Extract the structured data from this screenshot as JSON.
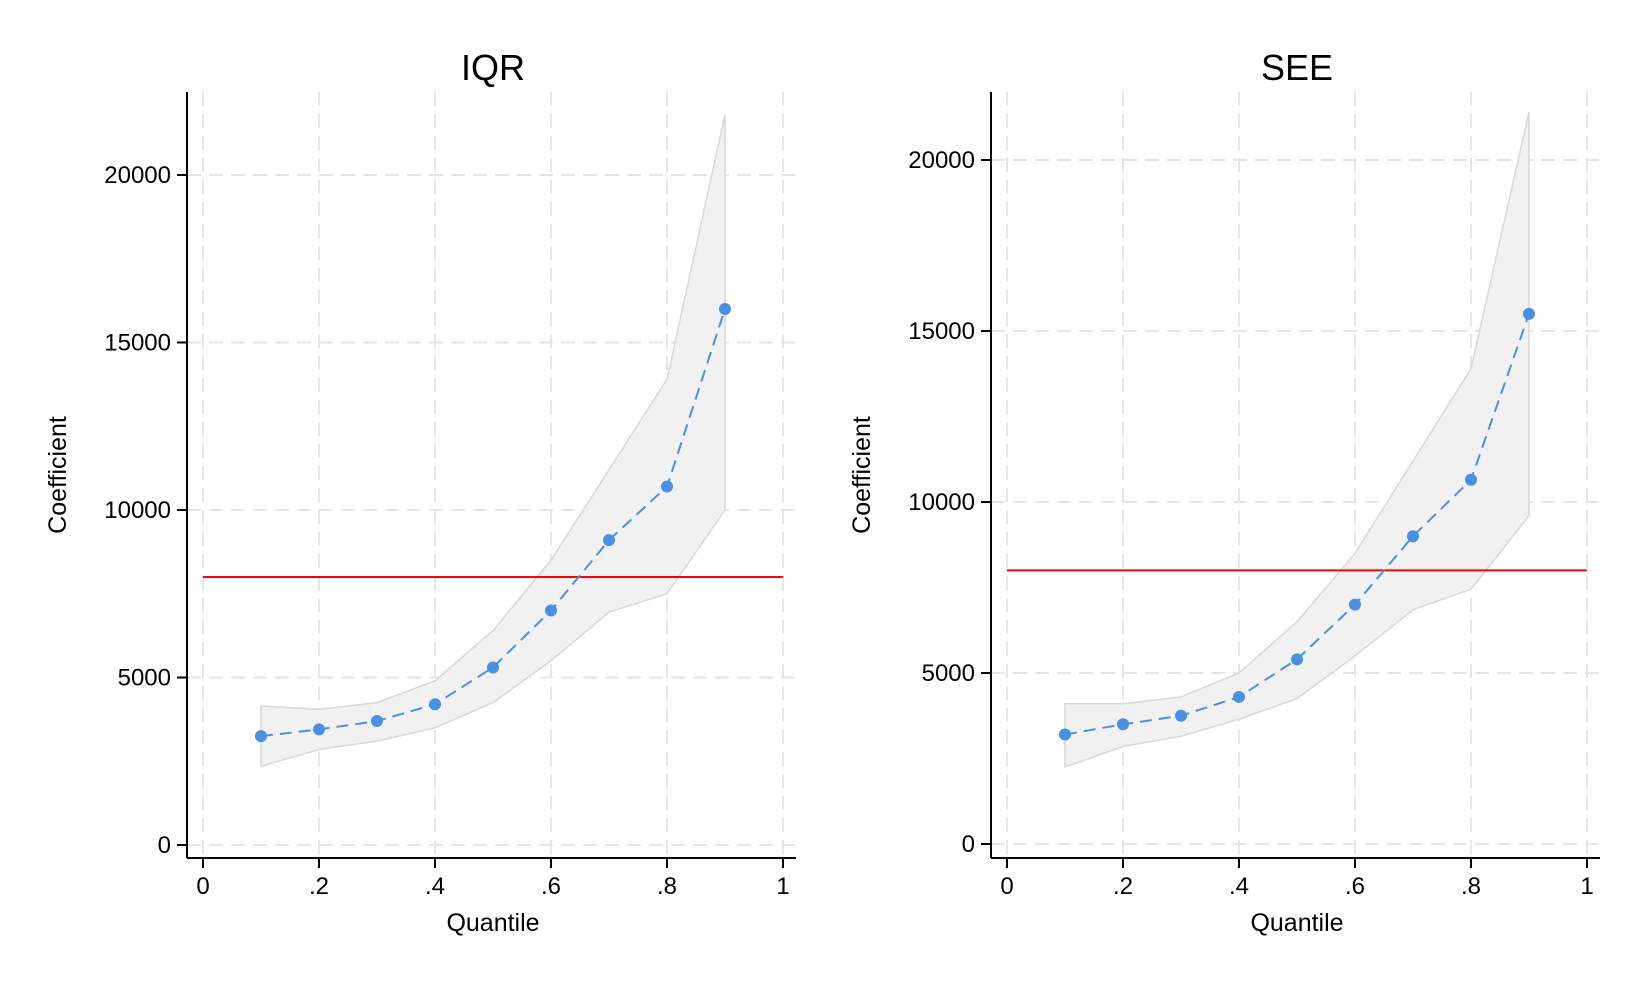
{
  "chart_data": [
    {
      "type": "line",
      "title": "IQR",
      "xlabel": "Quantile",
      "ylabel": "Coefficient",
      "xlim": [
        0,
        1
      ],
      "ylim": [
        0,
        21000
      ],
      "xticks": [
        {
          "value": 0,
          "label": "0"
        },
        {
          "value": 0.2,
          "label": ".2"
        },
        {
          "value": 0.4,
          "label": ".4"
        },
        {
          "value": 0.6,
          "label": ".6"
        },
        {
          "value": 0.8,
          "label": ".8"
        },
        {
          "value": 1,
          "label": "1"
        }
      ],
      "yticks": [
        {
          "value": 0,
          "label": "0"
        },
        {
          "value": 5000,
          "label": "5000"
        },
        {
          "value": 10000,
          "label": "10000"
        },
        {
          "value": 15000,
          "label": "15000"
        },
        {
          "value": 20000,
          "label": "20000"
        }
      ],
      "grid": true,
      "x": [
        0.1,
        0.2,
        0.3,
        0.4,
        0.5,
        0.6,
        0.7,
        0.8,
        0.9
      ],
      "series": [
        {
          "values": [
            3250,
            3450,
            3700,
            4200,
            5300,
            7000,
            9100,
            10700,
            16000
          ]
        }
      ],
      "ci_lower": [
        2350,
        2850,
        3100,
        3500,
        4250,
        5500,
        6950,
        7500,
        10000
      ],
      "ci_upper": [
        4150,
        4050,
        4250,
        4900,
        6400,
        8500,
        11200,
        13900,
        21800
      ],
      "reference_line": 8000
    },
    {
      "type": "line",
      "title": "SEE",
      "xlabel": "Quantile",
      "ylabel": "Coefficient",
      "xlim": [
        0,
        1
      ],
      "ylim": [
        0,
        21000
      ],
      "xticks": [
        {
          "value": 0,
          "label": "0"
        },
        {
          "value": 0.2,
          "label": ".2"
        },
        {
          "value": 0.4,
          "label": ".4"
        },
        {
          "value": 0.6,
          "label": ".6"
        },
        {
          "value": 0.8,
          "label": ".8"
        },
        {
          "value": 1,
          "label": "1"
        }
      ],
      "yticks": [
        {
          "value": 0,
          "label": "0"
        },
        {
          "value": 5000,
          "label": "5000"
        },
        {
          "value": 10000,
          "label": "10000"
        },
        {
          "value": 15000,
          "label": "15000"
        },
        {
          "value": 20000,
          "label": "20000"
        }
      ],
      "grid": true,
      "x": [
        0.1,
        0.2,
        0.3,
        0.4,
        0.5,
        0.6,
        0.7,
        0.8,
        0.9
      ],
      "series": [
        {
          "values": [
            3200,
            3500,
            3750,
            4300,
            5400,
            7000,
            9000,
            10650,
            15500
          ]
        }
      ],
      "ci_lower": [
        2250,
        2850,
        3150,
        3650,
        4250,
        5500,
        6850,
        7450,
        9600
      ],
      "ci_upper": [
        4100,
        4100,
        4300,
        5000,
        6500,
        8500,
        11200,
        13900,
        21400
      ],
      "reference_line": 8000
    }
  ],
  "colors": {
    "series": "#4a90e2",
    "reference_line": "#ff0000",
    "ci_fill": "#f1f1f1",
    "ci_edge": "#d8d8d8",
    "grid": "#e6e6e6",
    "axis": "#000000"
  }
}
